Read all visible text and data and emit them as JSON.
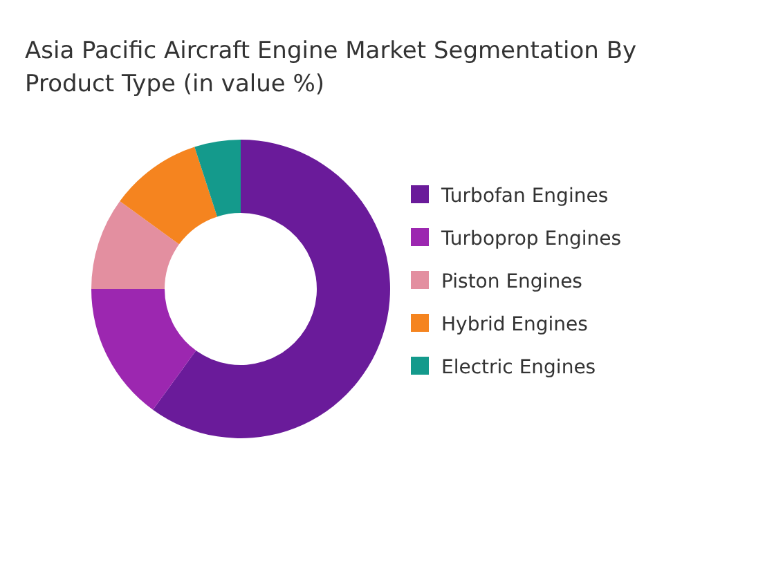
{
  "chart_data": {
    "type": "donut",
    "title": "Asia Pacific Aircraft Engine Market Segmentation By Product Type (in value %)",
    "categories": [
      "Turbofan Engines",
      "Turboprop Engines",
      "Piston Engines",
      "Hybrid Engines",
      "Electric Engines"
    ],
    "values": [
      60,
      15,
      10,
      10,
      5
    ],
    "colors": [
      "#6a1b9a",
      "#9c27b0",
      "#e38fa0",
      "#f5841f",
      "#149a8c"
    ],
    "legend": "right"
  }
}
